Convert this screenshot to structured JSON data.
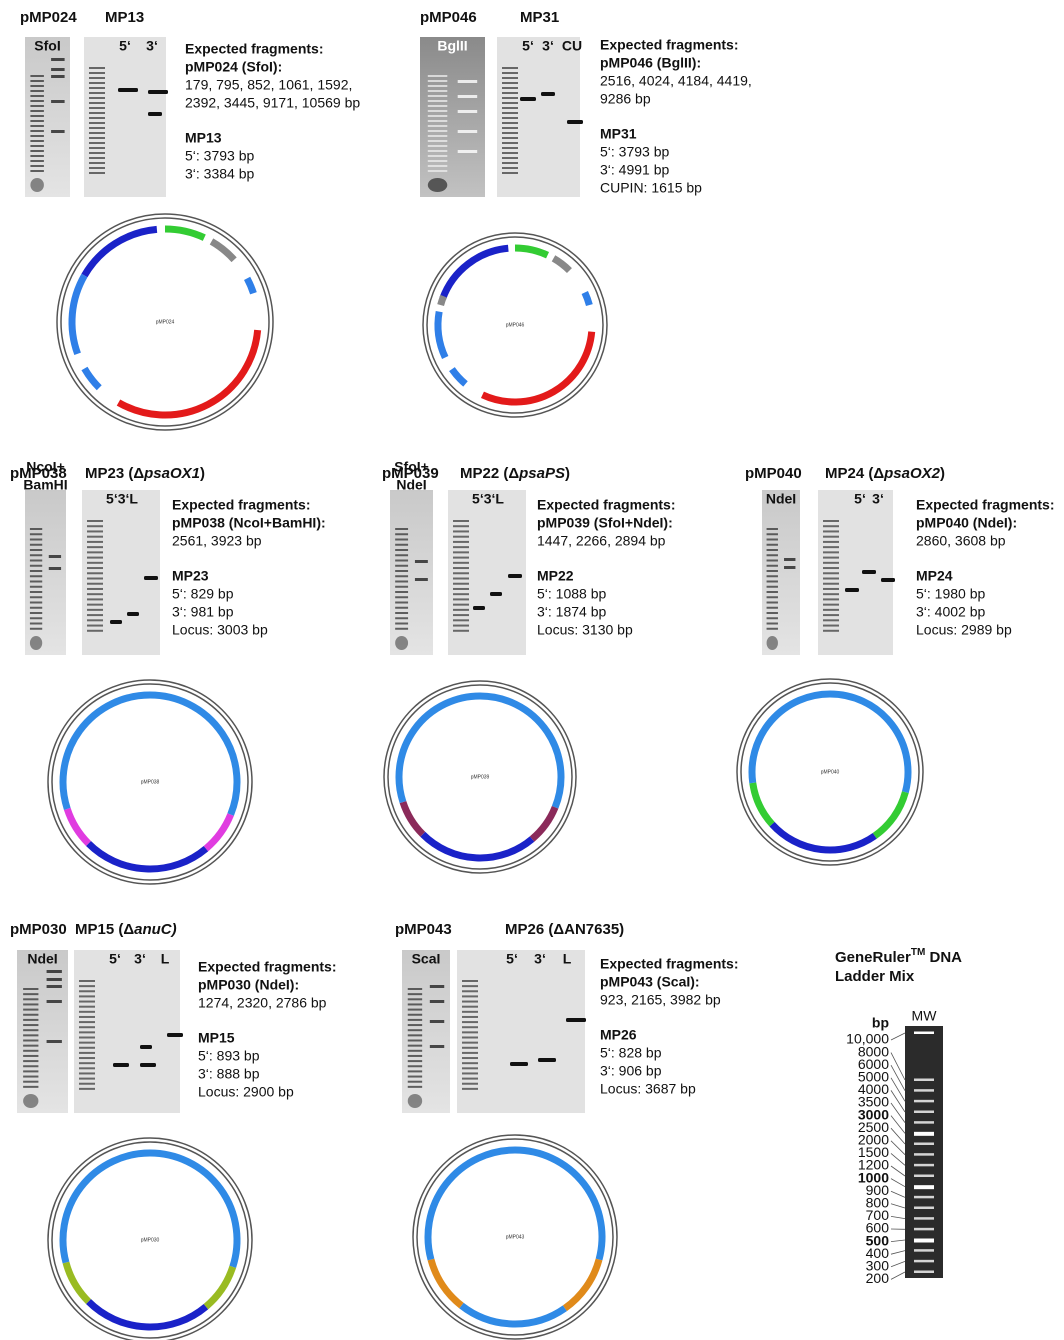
{
  "panels": [
    {
      "plasmid": "pMP024",
      "strain": [
        {
          "text": "MP13"
        }
      ],
      "digest_label": [
        "SfoI"
      ],
      "lane_labels": [
        "5‘",
        "3‘"
      ],
      "fragments_heading": "Expected fragments:",
      "digest_heading": "pMP024 (SfoI):",
      "digest_sizes": [
        "179, 795, 852, 1061, 1592,",
        "2392, 3445, 9171, 10569 bp"
      ],
      "strain_heading": "MP13",
      "strain_sizes": [
        "5‘: 3793 bp",
        "3‘: 3384 bp"
      ],
      "map_label": "pMP024"
    },
    {
      "plasmid": "pMP046",
      "strain": [
        {
          "text": "MP31"
        }
      ],
      "digest_label": [
        "BglII"
      ],
      "lane_labels": [
        "5‘",
        "3‘",
        "CU"
      ],
      "fragments_heading": "Expected fragments:",
      "digest_heading": "pMP046 (BglII):",
      "digest_sizes": [
        "2516, 4024, 4184, 4419,",
        "9286 bp"
      ],
      "strain_heading": "MP31",
      "strain_sizes": [
        "5‘: 3793 bp",
        "3‘: 4991 bp",
        "CUPIN: 1615 bp"
      ],
      "map_label": "pMP046"
    },
    {
      "plasmid": "pMP038",
      "strain": [
        {
          "text": "MP23 (Δ"
        },
        {
          "text": "psaOX1",
          "italic": true
        },
        {
          "text": ")"
        }
      ],
      "digest_label": [
        "NcoI+",
        "BamHI"
      ],
      "lane_labels": [
        "5‘3‘L"
      ],
      "fragments_heading": "Expected fragments:",
      "digest_heading": "pMP038 (NcoI+BamHI):",
      "digest_sizes": [
        "2561, 3923 bp"
      ],
      "strain_heading": "MP23",
      "strain_sizes": [
        "5‘: 829 bp",
        "3‘: 981 bp",
        "Locus: 3003 bp"
      ],
      "map_label": "pMP038"
    },
    {
      "plasmid": "pMP039",
      "strain": [
        {
          "text": "MP22 (Δ"
        },
        {
          "text": "psaPS",
          "italic": true
        },
        {
          "text": ")"
        }
      ],
      "digest_label": [
        "SfoI+",
        "NdeI"
      ],
      "lane_labels": [
        "5‘3‘L"
      ],
      "fragments_heading": "Expected fragments:",
      "digest_heading": "pMP039 (SfoI+NdeI):",
      "digest_sizes": [
        "1447, 2266, 2894 bp"
      ],
      "strain_heading": "MP22",
      "strain_sizes": [
        "5‘: 1088 bp",
        "3‘: 1874 bp",
        "Locus: 3130 bp"
      ],
      "map_label": "pMP039"
    },
    {
      "plasmid": "pMP040",
      "strain": [
        {
          "text": "MP24 (Δ"
        },
        {
          "text": "psaOX2",
          "italic": true
        },
        {
          "text": ")"
        }
      ],
      "digest_label": [
        "NdeI"
      ],
      "lane_labels": [
        "5‘",
        "3‘"
      ],
      "fragments_heading": "Expected fragments:",
      "digest_heading": "pMP040 (NdeI):",
      "digest_sizes": [
        "2860, 3608 bp"
      ],
      "strain_heading": "MP24",
      "strain_sizes": [
        "5‘: 1980 bp",
        "3‘: 4002 bp",
        "Locus: 2989 bp"
      ],
      "map_label": "pMP040"
    },
    {
      "plasmid": "pMP030",
      "strain": [
        {
          "text": "MP15 (Δ"
        },
        {
          "text": "anuC)",
          "italic": true
        }
      ],
      "digest_label": [
        "NdeI"
      ],
      "lane_labels": [
        "5‘",
        "3‘",
        "L"
      ],
      "fragments_heading": "Expected fragments:",
      "digest_heading": "pMP030 (NdeI):",
      "digest_sizes": [
        "1274, 2320, 2786 bp"
      ],
      "strain_heading": "MP15",
      "strain_sizes": [
        "5‘: 893 bp",
        "3‘: 888 bp",
        "Locus: 2900 bp"
      ],
      "map_label": "pMP030"
    },
    {
      "plasmid": "pMP043",
      "strain": [
        {
          "text": "MP26 (ΔAN7635)"
        }
      ],
      "digest_label": [
        "ScaI"
      ],
      "lane_labels": [
        "5‘",
        "3‘",
        "L"
      ],
      "fragments_heading": "Expected fragments:",
      "digest_heading": "pMP043 (ScaI):",
      "digest_sizes": [
        "923, 2165, 3982 bp"
      ],
      "strain_heading": "MP26",
      "strain_sizes": [
        "5‘: 828 bp",
        "3‘: 906 bp",
        "Locus: 3687 bp"
      ],
      "map_label": "pMP043"
    }
  ],
  "ladder": {
    "title": "GeneRuler",
    "title_sup": "TM",
    "title_rest": " DNA",
    "title_line2": "Ladder Mix",
    "unit": "bp",
    "lane": "MW",
    "labels": [
      {
        "text": "10,000"
      },
      {
        "text": "8000"
      },
      {
        "text": "6000"
      },
      {
        "text": "5000"
      },
      {
        "text": "4000"
      },
      {
        "text": "3500"
      },
      {
        "text": "3000",
        "bold": true
      },
      {
        "text": "2500"
      },
      {
        "text": "2000"
      },
      {
        "text": "1500"
      },
      {
        "text": "1200"
      },
      {
        "text": "1000",
        "bold": true
      },
      {
        "text": "900"
      },
      {
        "text": "800"
      },
      {
        "text": "700"
      },
      {
        "text": "600"
      },
      {
        "text": "500",
        "bold": true
      },
      {
        "text": "400"
      },
      {
        "text": "300"
      },
      {
        "text": "200"
      }
    ]
  }
}
